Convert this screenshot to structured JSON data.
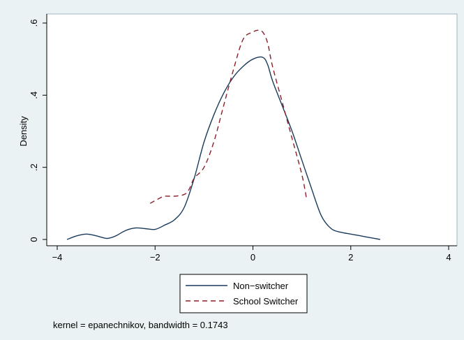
{
  "chart_data": {
    "type": "line",
    "title": "",
    "xlabel": "",
    "ylabel": "Density",
    "xlim": [
      -4,
      4
    ],
    "ylim": [
      0,
      0.6
    ],
    "x_ticks": [
      -4,
      -2,
      0,
      2,
      4
    ],
    "y_ticks": [
      0,
      0.2,
      0.4,
      0.6
    ],
    "x_tick_labels": [
      "−4",
      "−2",
      "0",
      "2",
      "4"
    ],
    "y_tick_labels": [
      "0",
      ".2",
      ".4",
      ".6"
    ],
    "grid": false,
    "legend_position": "bottom",
    "note": "kernel = epanechnikov, bandwidth = 0.1743",
    "series": [
      {
        "name": "Non−switcher",
        "color": "#1a3a5c",
        "dash": "solid",
        "x": [
          -3.8,
          -3.6,
          -3.4,
          -3.2,
          -3.0,
          -2.9,
          -2.8,
          -2.6,
          -2.4,
          -2.2,
          -2.0,
          -1.8,
          -1.6,
          -1.4,
          -1.2,
          -1.0,
          -0.8,
          -0.6,
          -0.4,
          -0.2,
          0.0,
          0.2,
          0.3,
          0.4,
          0.6,
          0.8,
          1.0,
          1.2,
          1.4,
          1.6,
          1.8,
          2.0,
          2.2,
          2.4,
          2.6
        ],
        "values": [
          0.0,
          0.01,
          0.015,
          0.01,
          0.003,
          0.005,
          0.01,
          0.025,
          0.032,
          0.03,
          0.028,
          0.04,
          0.055,
          0.09,
          0.17,
          0.27,
          0.345,
          0.405,
          0.45,
          0.48,
          0.5,
          0.505,
          0.485,
          0.44,
          0.37,
          0.3,
          0.22,
          0.14,
          0.065,
          0.03,
          0.02,
          0.015,
          0.01,
          0.005,
          0.0
        ]
      },
      {
        "name": "School Switcher",
        "color": "#8b1e2b",
        "dash": "7,5",
        "x": [
          -2.1,
          -1.9,
          -1.8,
          -1.6,
          -1.4,
          -1.3,
          -1.2,
          -1.0,
          -0.8,
          -0.6,
          -0.4,
          -0.2,
          0.0,
          0.1,
          0.2,
          0.3,
          0.4,
          0.6,
          0.8,
          1.0,
          1.1
        ],
        "values": [
          0.1,
          0.115,
          0.12,
          0.12,
          0.125,
          0.14,
          0.17,
          0.2,
          0.27,
          0.37,
          0.47,
          0.555,
          0.575,
          0.58,
          0.575,
          0.545,
          0.48,
          0.38,
          0.28,
          0.18,
          0.11
        ]
      }
    ]
  }
}
